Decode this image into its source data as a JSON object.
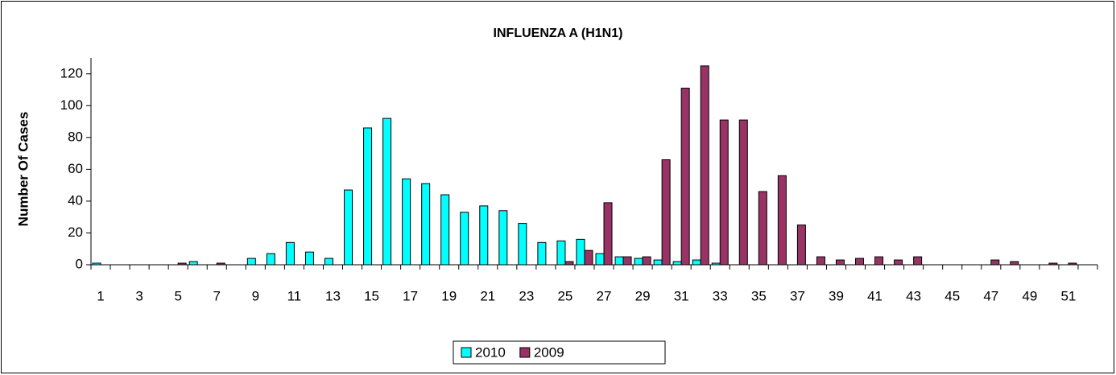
{
  "chart_data": {
    "type": "bar",
    "title": "INFLUENZA A (H1N1)",
    "y_label": "Number Of Cases",
    "categories": [
      "1",
      null,
      "3",
      null,
      "5",
      null,
      "7",
      null,
      "9",
      null,
      "11",
      null,
      "13",
      null,
      "15",
      null,
      "17",
      null,
      "19",
      null,
      "21",
      null,
      "23",
      null,
      "25",
      null,
      "27",
      null,
      "29",
      null,
      "31",
      null,
      "33",
      null,
      "35",
      null,
      "37",
      null,
      "39",
      null,
      "41",
      null,
      "43",
      null,
      "45",
      null,
      "47",
      null,
      "49",
      null,
      "51",
      null
    ],
    "series": [
      {
        "name": "2010",
        "color": "#00ffff",
        "values": [
          1,
          0,
          0,
          0,
          0,
          2,
          0,
          0,
          4,
          7,
          14,
          8,
          4,
          47,
          86,
          92,
          54,
          51,
          44,
          33,
          37,
          34,
          26,
          14,
          15,
          16,
          7,
          5,
          4,
          3,
          2,
          3,
          1,
          0,
          0,
          0,
          0,
          0,
          0,
          0,
          0,
          0,
          0,
          0,
          0,
          0,
          0,
          0,
          0,
          0,
          0,
          0
        ]
      },
      {
        "name": "2009",
        "color": "#993366",
        "values": [
          0,
          0,
          0,
          0,
          1,
          0,
          1,
          0,
          0,
          0,
          0,
          0,
          0,
          0,
          0,
          0,
          0,
          0,
          0,
          0,
          0,
          0,
          0,
          0,
          2,
          9,
          39,
          5,
          5,
          66,
          111,
          125,
          91,
          91,
          46,
          56,
          25,
          5,
          3,
          4,
          5,
          3,
          5,
          0,
          0,
          0,
          3,
          2,
          0,
          1,
          1,
          0
        ]
      }
    ],
    "ylim": [
      0,
      130
    ],
    "yticks": [
      0,
      20,
      40,
      60,
      80,
      100,
      120
    ],
    "grid": false,
    "legend": "bottom"
  }
}
